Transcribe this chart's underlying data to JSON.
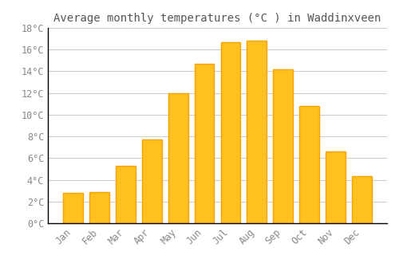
{
  "title": "Average monthly temperatures (°C ) in Waddinxveen",
  "months": [
    "Jan",
    "Feb",
    "Mar",
    "Apr",
    "May",
    "Jun",
    "Jul",
    "Aug",
    "Sep",
    "Oct",
    "Nov",
    "Dec"
  ],
  "values": [
    2.8,
    2.9,
    5.3,
    7.7,
    12.0,
    14.7,
    16.7,
    16.8,
    14.2,
    10.8,
    6.6,
    4.3
  ],
  "bar_color": "#FFC020",
  "bar_edge_color": "#FFA000",
  "background_color": "#FFFFFF",
  "grid_color": "#CCCCCC",
  "text_color": "#888888",
  "spine_color": "#000000",
  "ylim": [
    0,
    18
  ],
  "yticks": [
    0,
    2,
    4,
    6,
    8,
    10,
    12,
    14,
    16,
    18
  ],
  "title_fontsize": 10,
  "tick_fontsize": 8.5
}
